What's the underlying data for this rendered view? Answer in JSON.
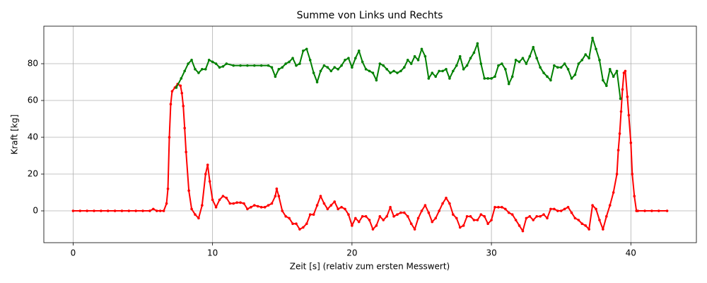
{
  "chart_data": {
    "type": "line",
    "title": "Summe von Links und Rechts",
    "xlabel": "Zeit [s] (relativ zum ersten Messwert)",
    "ylabel": "Kraft [kg]",
    "xlim": [
      -2.1,
      44.7
    ],
    "ylim": [
      -17.3,
      100.4
    ],
    "xticks": [
      0,
      10,
      20,
      30,
      40
    ],
    "yticks": [
      0,
      20,
      40,
      60,
      80
    ],
    "grid": true,
    "series": [
      {
        "color": "#ff0000",
        "x": [
          0,
          0.5,
          1,
          1.5,
          2,
          2.5,
          3,
          3.5,
          4,
          4.5,
          5,
          5.5,
          5.75,
          6,
          6.25,
          6.5,
          6.7,
          6.8,
          6.9,
          7,
          7.1,
          7.3,
          7.5,
          7.7,
          7.8,
          7.9,
          8,
          8.1,
          8.3,
          8.5,
          8.75,
          9,
          9.25,
          9.5,
          9.65,
          9.8,
          10,
          10.25,
          10.5,
          10.75,
          11,
          11.25,
          11.5,
          11.75,
          12,
          12.25,
          12.5,
          12.75,
          13,
          13.25,
          13.5,
          13.75,
          14,
          14.25,
          14.5,
          14.6,
          14.75,
          15,
          15.25,
          15.5,
          15.75,
          16,
          16.25,
          16.5,
          16.75,
          17,
          17.25,
          17.5,
          17.75,
          18,
          18.25,
          18.5,
          18.75,
          19,
          19.25,
          19.5,
          19.75,
          20,
          20.25,
          20.5,
          20.75,
          21,
          21.25,
          21.5,
          21.75,
          22,
          22.25,
          22.5,
          22.75,
          23,
          23.25,
          23.5,
          23.75,
          24,
          24.25,
          24.5,
          24.75,
          25,
          25.25,
          25.5,
          25.75,
          26,
          26.25,
          26.5,
          26.75,
          27,
          27.25,
          27.5,
          27.75,
          28,
          28.25,
          28.5,
          28.75,
          29,
          29.25,
          29.5,
          29.75,
          30,
          30.25,
          30.5,
          30.75,
          31,
          31.25,
          31.5,
          31.75,
          32,
          32.25,
          32.5,
          32.75,
          33,
          33.25,
          33.5,
          33.75,
          34,
          34.25,
          34.5,
          34.75,
          35,
          35.25,
          35.5,
          35.75,
          36,
          36.25,
          36.5,
          36.75,
          37,
          37.25,
          37.5,
          37.75,
          38,
          38.25,
          38.5,
          38.75,
          39,
          39.1,
          39.2,
          39.3,
          39.4,
          39.5,
          39.6,
          39.75,
          39.85,
          40,
          40.1,
          40.25,
          40.4,
          40.5,
          41,
          41.5,
          42,
          42.6
        ],
        "values": [
          0,
          0,
          0,
          0,
          0,
          0,
          0,
          0,
          0,
          0,
          0,
          0,
          1,
          0,
          0,
          0,
          4,
          12,
          40,
          58,
          65,
          67,
          69,
          68,
          64,
          57,
          45,
          32,
          11,
          1,
          -2,
          -4,
          3,
          20,
          25,
          16,
          6,
          2,
          6,
          8,
          7,
          4,
          4,
          4.5,
          4.5,
          4,
          1,
          2,
          3,
          2.5,
          2,
          2,
          3,
          4,
          8,
          12,
          8,
          0,
          -3,
          -4,
          -7,
          -7,
          -10,
          -9,
          -7,
          -2,
          -2,
          3,
          8,
          4,
          1,
          3,
          5,
          1,
          2,
          1,
          -2,
          -8,
          -4,
          -6,
          -3,
          -3,
          -5,
          -10,
          -8,
          -3,
          -5,
          -3,
          2,
          -3,
          -2,
          -1,
          -1,
          -3,
          -7,
          -10,
          -4,
          0,
          3,
          -1,
          -6,
          -4,
          0,
          4,
          7,
          4,
          -2,
          -4,
          -9,
          -8,
          -3,
          -3,
          -5,
          -5,
          -2,
          -3,
          -7,
          -5,
          2,
          2,
          2,
          1,
          -1,
          -2,
          -5,
          -8,
          -11,
          -4,
          -3,
          -5,
          -3,
          -3,
          -2,
          -4,
          1,
          1,
          0,
          0,
          1,
          2,
          -1,
          -4,
          -5,
          -7,
          -8,
          -10,
          3,
          1,
          -5,
          -10,
          -3,
          3,
          10,
          20,
          33,
          42,
          54,
          66,
          75,
          76,
          62,
          52,
          37,
          20,
          8,
          0,
          0,
          0,
          0,
          0,
          0
        ]
      },
      {
        "color": "#008000",
        "x": [
          7.4,
          7.75,
          8,
          8.25,
          8.5,
          8.75,
          9,
          9.25,
          9.5,
          9.75,
          10,
          10.25,
          10.5,
          10.75,
          11,
          11.5,
          12,
          12.5,
          13,
          13.5,
          14,
          14.25,
          14.5,
          14.75,
          15,
          15.25,
          15.5,
          15.75,
          16,
          16.25,
          16.5,
          16.75,
          17,
          17.25,
          17.5,
          17.75,
          18,
          18.25,
          18.5,
          18.75,
          19,
          19.25,
          19.5,
          19.75,
          20,
          20.25,
          20.5,
          20.75,
          21,
          21.25,
          21.5,
          21.75,
          22,
          22.25,
          22.5,
          22.75,
          23,
          23.25,
          23.5,
          23.75,
          24,
          24.25,
          24.5,
          24.75,
          25,
          25.25,
          25.5,
          25.75,
          26,
          26.25,
          26.5,
          26.75,
          27,
          27.25,
          27.5,
          27.75,
          28,
          28.25,
          28.5,
          28.75,
          29,
          29.25,
          29.5,
          29.75,
          30,
          30.25,
          30.5,
          30.75,
          31,
          31.25,
          31.5,
          31.75,
          32,
          32.25,
          32.5,
          32.75,
          33,
          33.25,
          33.5,
          33.75,
          34,
          34.25,
          34.5,
          34.75,
          35,
          35.25,
          35.5,
          35.75,
          36,
          36.25,
          36.5,
          36.75,
          37,
          37.25,
          37.5,
          37.75,
          38,
          38.25,
          38.5,
          38.75,
          39,
          39.25
        ],
        "values": [
          67,
          72,
          76,
          80,
          82,
          77,
          75,
          77,
          77,
          82,
          81,
          80,
          78,
          78.5,
          80,
          79,
          79,
          79,
          79,
          79,
          79,
          78,
          73,
          77,
          78,
          80,
          81,
          83,
          79,
          80,
          87,
          88,
          82,
          75,
          70,
          76,
          79,
          78,
          76,
          78,
          77,
          79,
          82,
          83,
          78,
          83,
          87,
          81,
          77,
          76,
          75,
          71,
          80,
          79,
          77,
          75,
          76,
          75,
          76,
          78,
          82,
          80,
          84,
          82,
          88,
          84,
          72,
          75,
          73,
          76,
          76,
          77,
          72,
          76,
          79,
          84,
          77,
          79,
          83,
          86,
          91,
          80,
          72,
          72,
          72,
          73,
          79,
          80,
          77,
          69,
          73,
          82,
          81,
          83,
          80,
          84,
          89,
          83,
          78,
          75,
          73,
          71,
          79,
          78,
          78,
          80,
          77,
          72,
          74,
          80,
          82,
          85,
          83,
          94,
          88,
          82,
          71,
          68,
          77,
          73,
          76,
          61
        ]
      }
    ]
  }
}
